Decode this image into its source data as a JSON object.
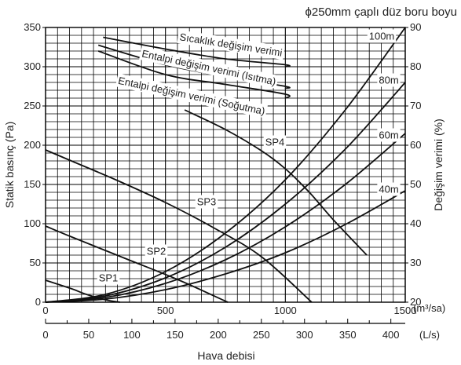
{
  "chart_data": {
    "type": "line",
    "title": "ϕ250mm çaplı düz boru boyu",
    "xlabel": "Hava debisi",
    "x_units": [
      "(m³/sa)",
      "(L/s)"
    ],
    "ylabel_left": "Statik basınç (Pa)",
    "ylabel_right": "Değişim verimi (%)",
    "xlim_m3h": [
      0,
      1500
    ],
    "ylim_left": [
      0,
      350
    ],
    "ylim_right": [
      20,
      90
    ],
    "grid": "on",
    "xticks_m3h": [
      0,
      500,
      1000,
      1500
    ],
    "xticks_ls": [
      0,
      50,
      100,
      150,
      200,
      250,
      300,
      350,
      400
    ],
    "yticks_left": [
      0,
      50,
      100,
      150,
      200,
      250,
      300,
      350
    ],
    "yticks_right": [
      20,
      30,
      40,
      50,
      60,
      70,
      80,
      90
    ],
    "fan_curves": [
      {
        "name": "SP1",
        "x": [
          0,
          110,
          170,
          250,
          310
        ],
        "y": [
          28,
          17,
          10,
          3,
          0
        ]
      },
      {
        "name": "SP2",
        "x": [
          0,
          110,
          330,
          550,
          760
        ],
        "y": [
          97,
          83,
          56,
          29,
          0
        ]
      },
      {
        "name": "SP3",
        "x": [
          0,
          100,
          300,
          500,
          700,
          900,
          1110
        ],
        "y": [
          194,
          181,
          155,
          127,
          95,
          58,
          0
        ]
      },
      {
        "name": "SP4",
        "x": [
          580,
          750,
          900,
          1000,
          1100,
          1200,
          1340
        ],
        "y": [
          245,
          220,
          193,
          170,
          140,
          105,
          60
        ]
      }
    ],
    "duct_curves": [
      {
        "name": "40m",
        "x": [
          0,
          250,
          500,
          750,
          1000,
          1250,
          1500
        ],
        "y": [
          0,
          4,
          16,
          36,
          63,
          99,
          142
        ]
      },
      {
        "name": "60m",
        "x": [
          0,
          250,
          500,
          750,
          1000,
          1250,
          1500
        ],
        "y": [
          0,
          6,
          24,
          54,
          96,
          150,
          215
        ]
      },
      {
        "name": "80m",
        "x": [
          0,
          250,
          500,
          750,
          1000,
          1250,
          1500
        ],
        "y": [
          0,
          8,
          31,
          70,
          125,
          195,
          280
        ]
      },
      {
        "name": "100m",
        "x": [
          0,
          250,
          500,
          750,
          1000,
          1250,
          1500
        ],
        "y": [
          0,
          10,
          39,
          88,
          156,
          245,
          350
        ]
      }
    ],
    "efficiency_curves": [
      {
        "name": "Sıcaklık değişim verimi",
        "x": [
          240,
          500,
          750,
          1000,
          1000
        ],
        "y": [
          87.5,
          84.5,
          82,
          80.5,
          80
        ]
      },
      {
        "name": "Entalpi değişim verimi (Isıtma)",
        "x": [
          220,
          500,
          750,
          1000,
          1000
        ],
        "y": [
          85.5,
          80.5,
          77.5,
          75,
          74.5
        ]
      },
      {
        "name": "Entalpi değişim verimi (Soğutma)",
        "x": [
          220,
          500,
          750,
          1000,
          1000
        ],
        "y": [
          84,
          78,
          75.5,
          73,
          72
        ]
      }
    ]
  }
}
